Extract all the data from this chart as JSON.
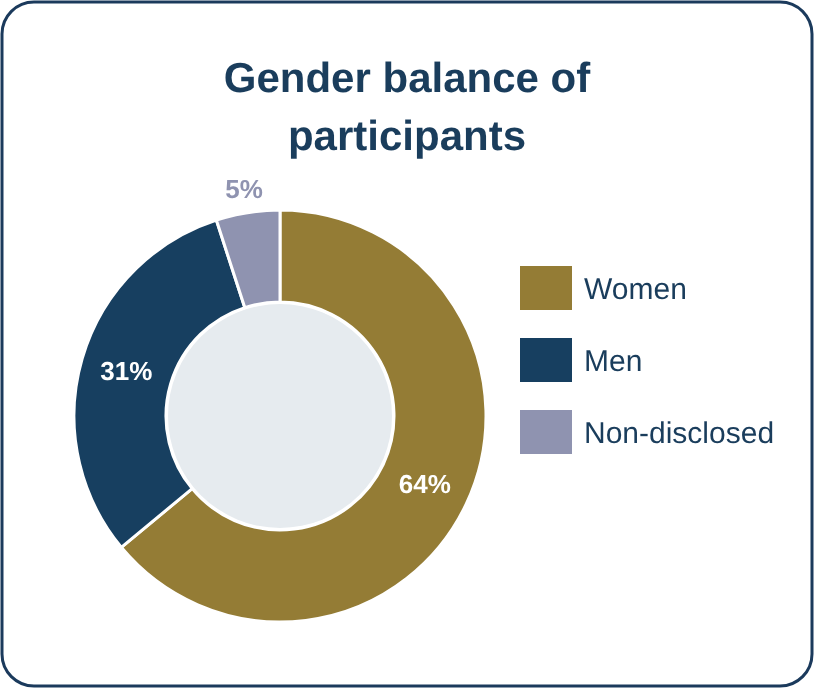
{
  "chart_data": {
    "type": "donut",
    "title": "Gender balance of participants",
    "categories": [
      "Women",
      "Men",
      "Non-disclosed"
    ],
    "values": [
      64,
      31,
      5
    ],
    "colors": [
      "#947c35",
      "#173f60",
      "#8f93b0"
    ],
    "value_labels": [
      "64%",
      "31%",
      "5%"
    ],
    "legend": "right"
  }
}
